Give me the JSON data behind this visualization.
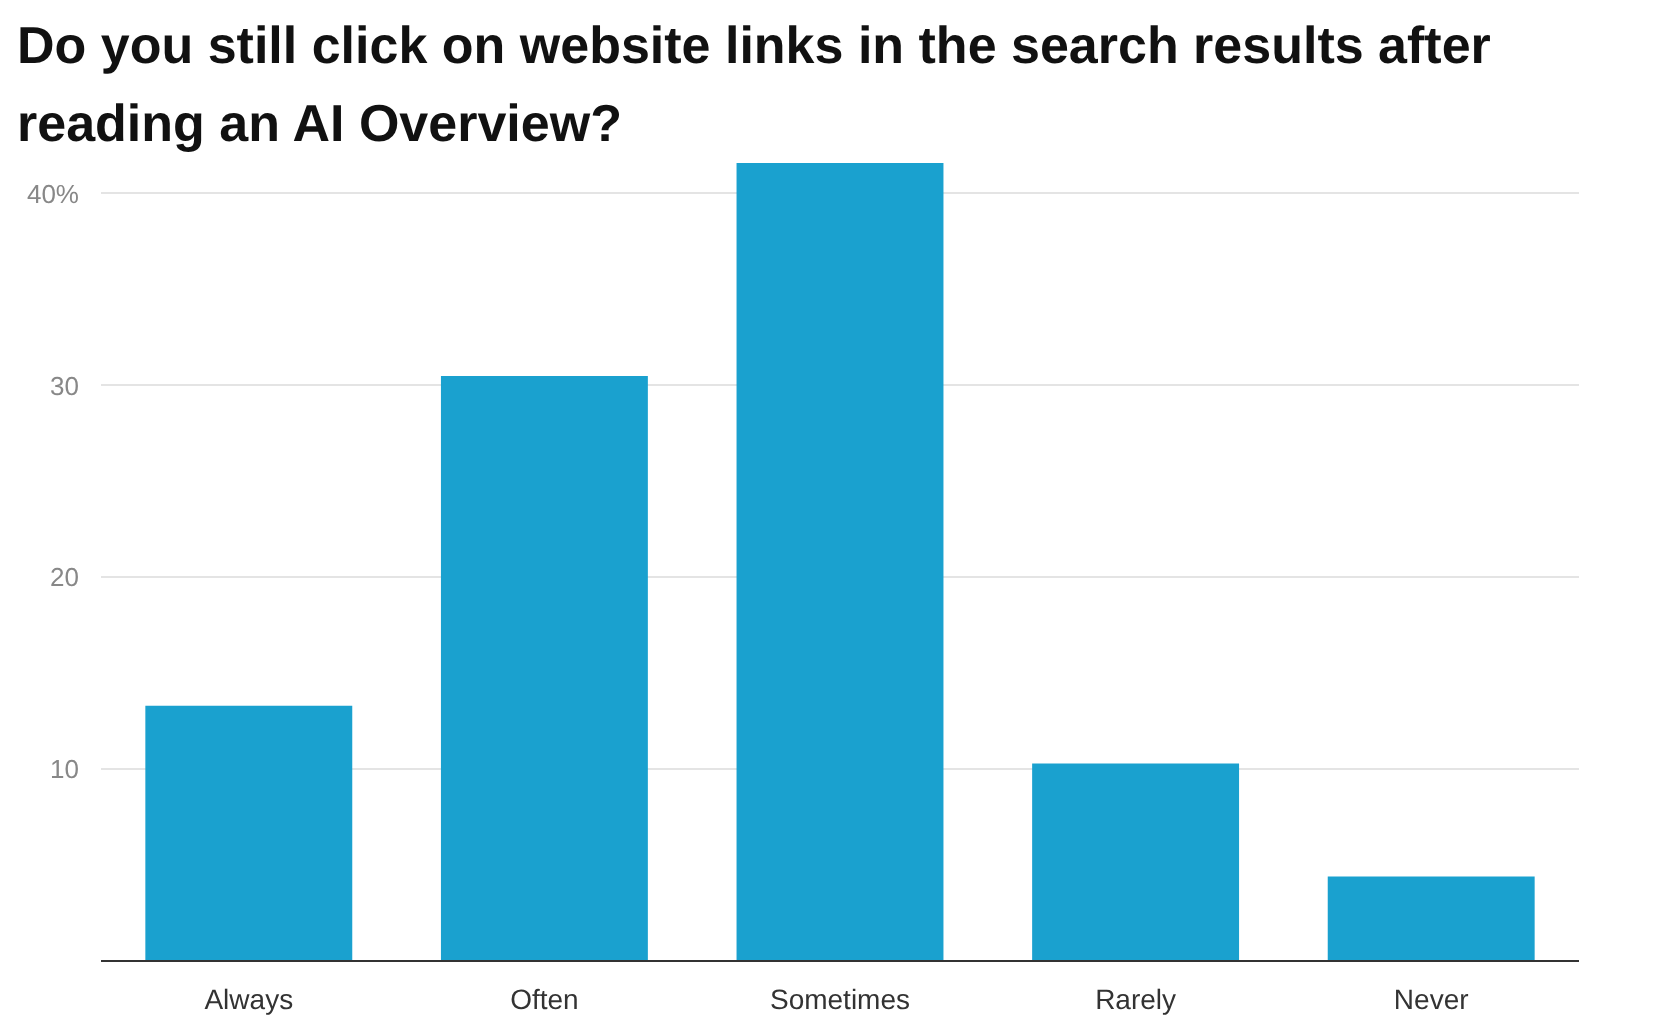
{
  "chart_data": {
    "type": "bar",
    "title": "Do you still click on website links in the search results after reading an AI Overview?",
    "categories": [
      "Always",
      "Often",
      "Sometimes",
      "Rarely",
      "Never"
    ],
    "values": [
      13.3,
      30.5,
      41.6,
      10.3,
      4.4
    ],
    "color": "#1aa1cf",
    "ylim": [
      0,
      41.6
    ],
    "yticks": [
      10,
      20,
      30,
      {
        "value": 40,
        "label": "40%"
      }
    ],
    "grid": "y"
  }
}
